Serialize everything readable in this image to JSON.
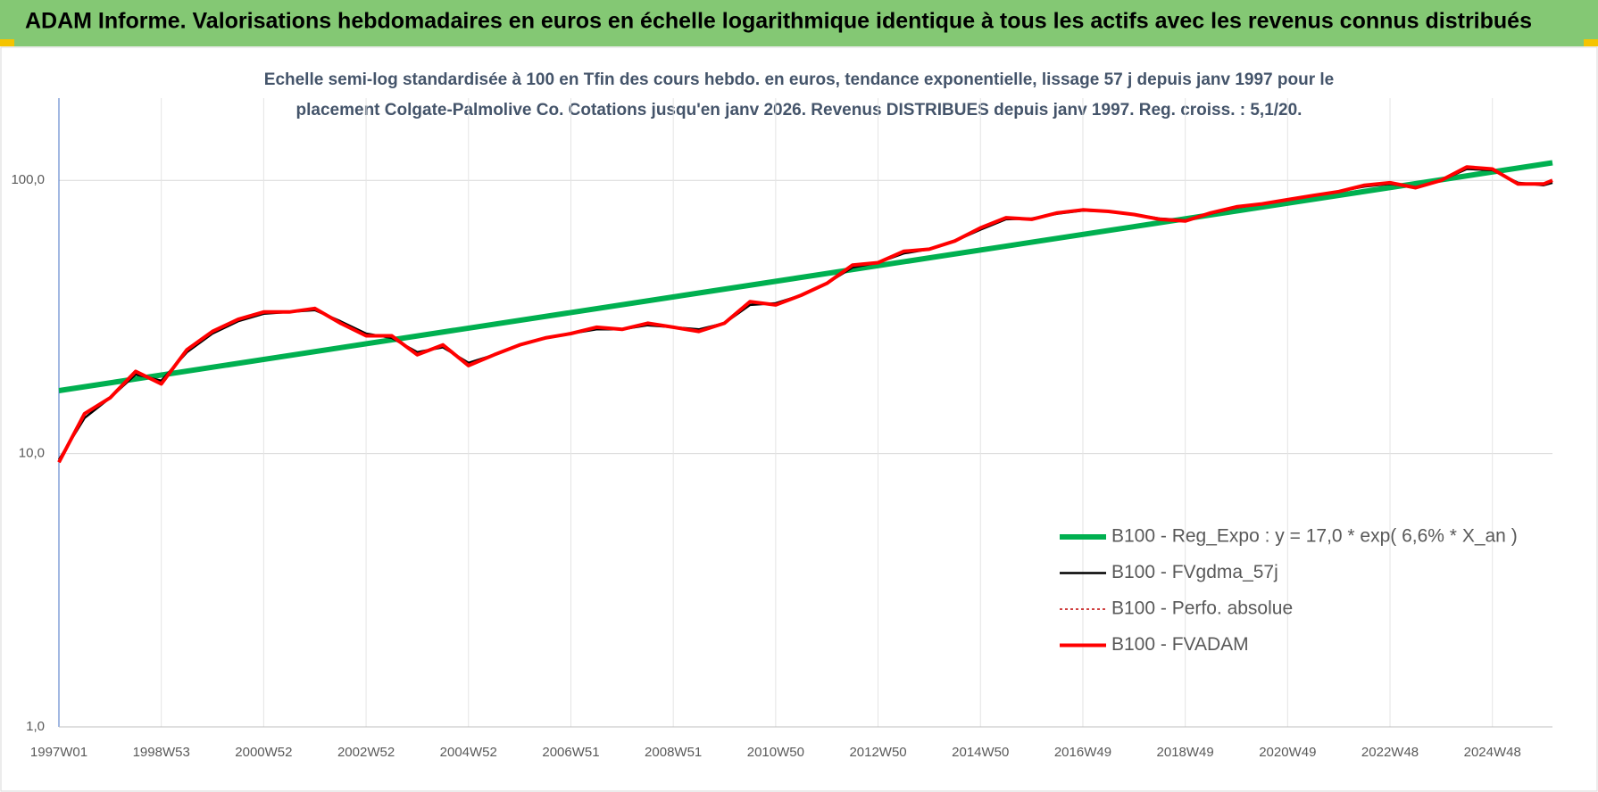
{
  "chart_data": {
    "type": "line",
    "title": "ADAM Informe. Valorisations hebdomadaires en euros en échelle logarithmique identique à tous les actifs avec les revenus connus distribués",
    "subtitle": [
      "Echelle semi-log standardisée à 100 en Tfin des cours hebdo. en euros, tendance exponentielle, lissage 57 j depuis janv 1997 pour le",
      "placement Colgate-Palmolive Co. Cotations jusqu'en janv 2026.  Revenus DISTRIBUES depuis janv 1997. Reg.  croiss. : 5,1/20."
    ],
    "log_scale": true,
    "grid": true,
    "legend": "bottom-right",
    "xlim": [
      0,
      1517
    ],
    "ylim": [
      1,
      200
    ],
    "yticks": [
      {
        "value": 1,
        "label": "1,0"
      },
      {
        "value": 10,
        "label": "10,0"
      },
      {
        "value": 100,
        "label": "100,0"
      }
    ],
    "xticks": [
      {
        "value": 0,
        "label": "1997W01"
      },
      {
        "value": 104,
        "label": "1998W53"
      },
      {
        "value": 208,
        "label": "2000W52"
      },
      {
        "value": 312,
        "label": "2002W52"
      },
      {
        "value": 416,
        "label": "2004W52"
      },
      {
        "value": 520,
        "label": "2006W51"
      },
      {
        "value": 624,
        "label": "2008W51"
      },
      {
        "value": 728,
        "label": "2010W50"
      },
      {
        "value": 832,
        "label": "2012W50"
      },
      {
        "value": 936,
        "label": "2014W50"
      },
      {
        "value": 1040,
        "label": "2016W49"
      },
      {
        "value": 1144,
        "label": "2018W49"
      },
      {
        "value": 1248,
        "label": "2020W49"
      },
      {
        "value": 1352,
        "label": "2022W48"
      },
      {
        "value": 1456,
        "label": "2024W48"
      }
    ],
    "series": [
      {
        "name": "B100 - Reg_Expo : y = 17,0 * exp( 6,6% *  X_an )",
        "color": "#00b050",
        "width": 6,
        "x": [
          0,
          1517
        ],
        "values": [
          17,
          116
        ]
      },
      {
        "name": "B100 - FVgdma_57j",
        "color": "#000000",
        "width": 2.5,
        "x": [
          0,
          26,
          52,
          78,
          104,
          130,
          156,
          182,
          208,
          234,
          260,
          286,
          312,
          338,
          364,
          390,
          416,
          442,
          468,
          494,
          520,
          546,
          572,
          598,
          624,
          650,
          676,
          702,
          728,
          754,
          780,
          806,
          832,
          858,
          884,
          910,
          936,
          962,
          988,
          1014,
          1040,
          1066,
          1092,
          1118,
          1144,
          1170,
          1196,
          1222,
          1248,
          1274,
          1300,
          1326,
          1352,
          1378,
          1404,
          1430,
          1456,
          1482,
          1508,
          1517
        ],
        "values": [
          9.5,
          13.5,
          16,
          19.5,
          18.5,
          23.5,
          27.5,
          30.5,
          32.5,
          33,
          33.5,
          30.5,
          27.5,
          26.5,
          23.5,
          24.5,
          21.5,
          23,
          25,
          26.5,
          27.5,
          28.5,
          28.5,
          29.5,
          29,
          28.5,
          30,
          35,
          35.5,
          38,
          42,
          48,
          50,
          54,
          56,
          60,
          66,
          72,
          72.5,
          75.5,
          77.5,
          77,
          75,
          72.5,
          71.5,
          75.5,
          79.5,
          82,
          85,
          88,
          91,
          95,
          97,
          94.5,
          100,
          110,
          109,
          98,
          96,
          98
        ]
      },
      {
        "name": "B100 - Perfo. absolue",
        "color": "#c00000",
        "width": 1.5,
        "dash": "3 3",
        "x": [
          0,
          26,
          52,
          78,
          104,
          130,
          156,
          182,
          208,
          234,
          260,
          286,
          312,
          338,
          364,
          390,
          416,
          442,
          468,
          494,
          520,
          546,
          572,
          598,
          624,
          650,
          676,
          702,
          728,
          754,
          780,
          806,
          832,
          858,
          884,
          910,
          936,
          962,
          988,
          1014,
          1040,
          1066,
          1092,
          1118,
          1144,
          1170,
          1196,
          1222,
          1248,
          1274,
          1300,
          1326,
          1352,
          1378,
          1404,
          1430,
          1456,
          1482,
          1508,
          1517
        ],
        "values": [
          9.3,
          14,
          16,
          20,
          18,
          24,
          28,
          31,
          33,
          33,
          34,
          30,
          27,
          27,
          23,
          25,
          21,
          23,
          25,
          26.5,
          27.5,
          29,
          28.5,
          30,
          29,
          28,
          30,
          36,
          35,
          38,
          42,
          49,
          50,
          55,
          56,
          60,
          67,
          73,
          72,
          76,
          78,
          77,
          75,
          72,
          71,
          76,
          80,
          82,
          85,
          88,
          91,
          96,
          98,
          94,
          100,
          112,
          110,
          97,
          97,
          100
        ]
      },
      {
        "name": "B100 - FVADAM",
        "color": "#ff0000",
        "width": 4,
        "x": [
          0,
          26,
          52,
          78,
          104,
          130,
          156,
          182,
          208,
          234,
          260,
          286,
          312,
          338,
          364,
          390,
          416,
          442,
          468,
          494,
          520,
          546,
          572,
          598,
          624,
          650,
          676,
          702,
          728,
          754,
          780,
          806,
          832,
          858,
          884,
          910,
          936,
          962,
          988,
          1014,
          1040,
          1066,
          1092,
          1118,
          1144,
          1170,
          1196,
          1222,
          1248,
          1274,
          1300,
          1326,
          1352,
          1378,
          1404,
          1430,
          1456,
          1482,
          1508,
          1517
        ],
        "values": [
          9.3,
          14,
          16,
          20,
          18,
          24,
          28,
          31,
          33,
          33,
          34,
          30,
          27,
          27,
          23,
          25,
          21,
          23,
          25,
          26.5,
          27.5,
          29,
          28.5,
          30,
          29,
          28,
          30,
          36,
          35,
          38,
          42,
          49,
          50,
          55,
          56,
          60,
          67,
          73,
          72,
          76,
          78,
          77,
          75,
          72,
          71,
          76,
          80,
          82,
          85,
          88,
          91,
          96,
          98,
          94,
          100,
          112,
          110,
          97,
          97,
          100
        ]
      }
    ]
  }
}
